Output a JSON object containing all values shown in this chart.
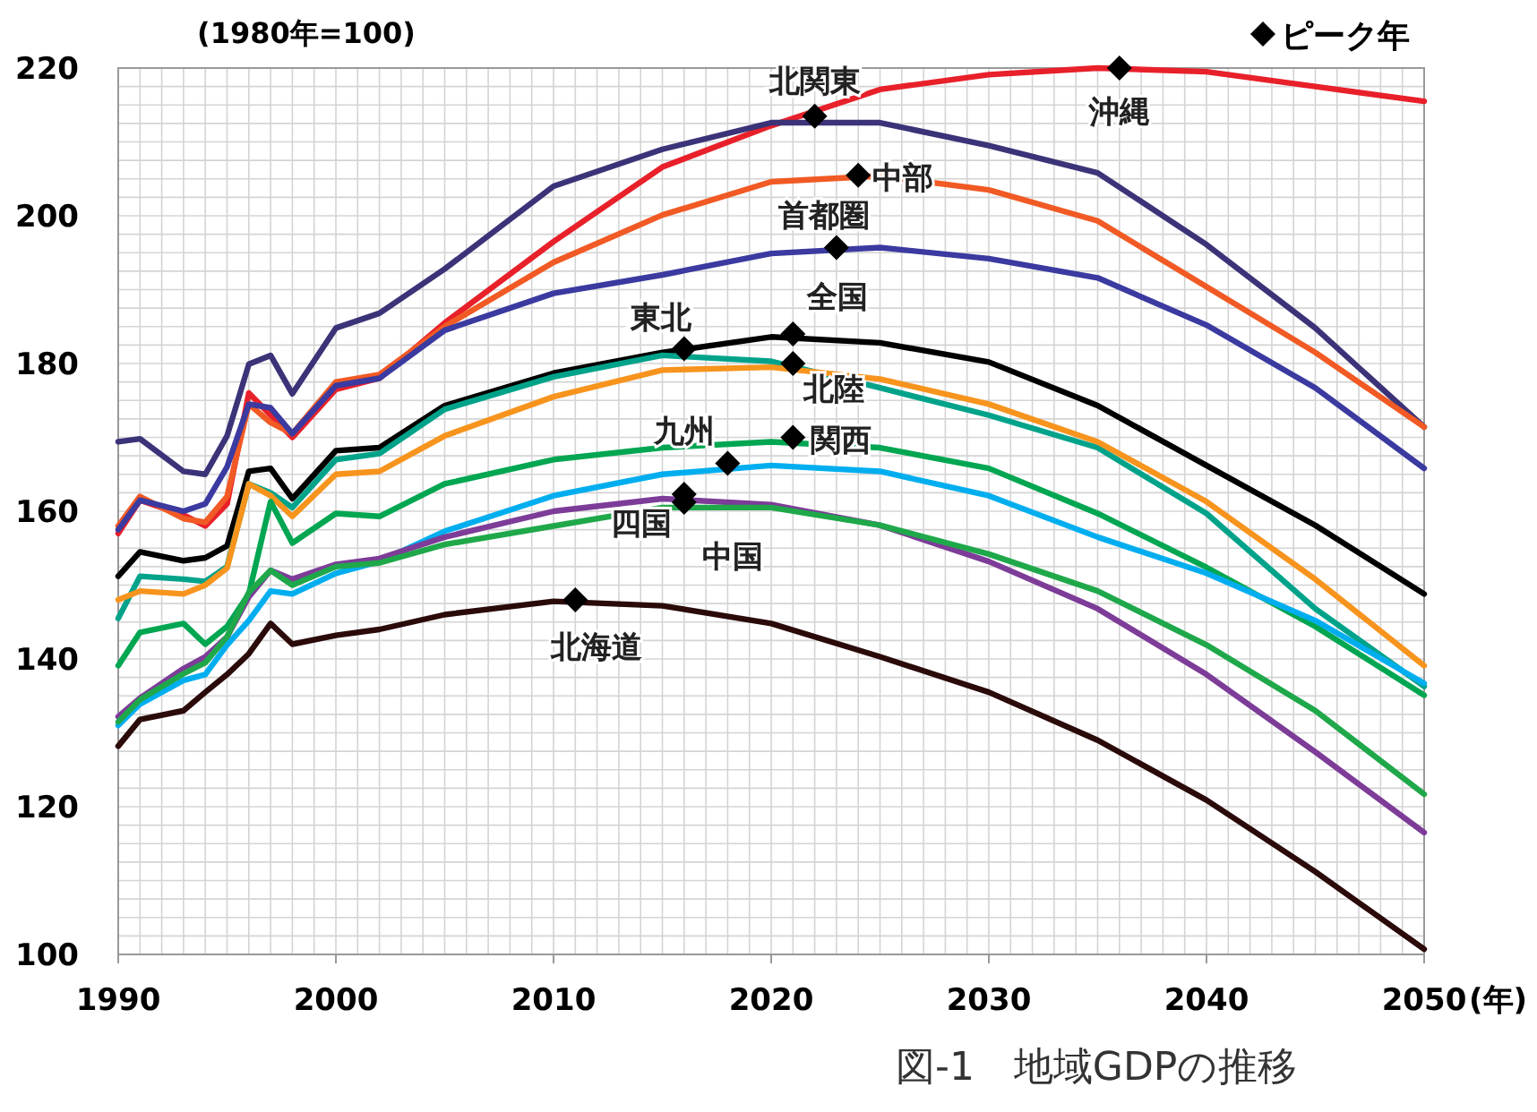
{
  "chart_data": {
    "type": "line",
    "ylabel": "(1980年=100)",
    "xlabel": "(年)",
    "annotations": [
      "図-1　地域GDPの推移",
      {
        "text": "沖縄",
        "x": 2036,
        "y": 220
      },
      {
        "text": "北関東",
        "x": 2022,
        "y": 213.5
      },
      {
        "text": "中部",
        "x": 2024,
        "y": 205.5
      },
      {
        "text": "首都圏",
        "x": 2023,
        "y": 195.7
      },
      {
        "text": "全国",
        "x": 2021,
        "y": 184
      },
      {
        "text": "東北",
        "x": 2016,
        "y": 182
      },
      {
        "text": "北陸",
        "x": 2021,
        "y": 180
      },
      {
        "text": "関西",
        "x": 2021,
        "y": 170
      },
      {
        "text": "九州",
        "x": 2018,
        "y": 166.5
      },
      {
        "text": "四国",
        "x": 2016,
        "y": 162.3
      },
      {
        "text": "中国",
        "x": 2016,
        "y": 161.2
      },
      {
        "text": "北海道",
        "x": 2011,
        "y": 148
      }
    ],
    "x": [
      1990,
      1991,
      1993,
      1994,
      1995,
      1996,
      1997,
      1998,
      2000,
      2002,
      2005,
      2010,
      2015,
      2020,
      2025,
      2030,
      2035,
      2040,
      2045,
      2050
    ],
    "xlim": [
      1990,
      2050
    ],
    "xticks": [
      1990,
      2000,
      2010,
      2020,
      2030,
      2040,
      2050
    ],
    "ylim": [
      100,
      220
    ],
    "yticks": [
      100,
      120,
      140,
      160,
      180,
      200,
      220
    ],
    "grid": true,
    "legend": "top right",
    "line_style": "solid",
    "marker": "none",
    "series": [
      {
        "color": "#e8202a",
        "values": [
          157,
          161.5,
          159.5,
          158,
          161,
          176,
          173,
          170,
          176.5,
          178,
          185.5,
          196.5,
          206.6,
          212.2,
          217.1,
          219.1,
          220,
          219.5,
          217.5,
          215.5
        ]
      },
      {
        "color": "#3b3378",
        "values": [
          169.4,
          169.8,
          165.4,
          165,
          170.2,
          179.9,
          181.1,
          175.9,
          184.8,
          186.8,
          192.8,
          204,
          209,
          212.6,
          212.6,
          209.5,
          205.8,
          196.1,
          184.8,
          171.4
        ]
      },
      {
        "color": "#f15a24",
        "values": [
          158,
          162,
          159,
          158.5,
          162,
          174.5,
          172,
          170.5,
          177.5,
          178.5,
          185,
          193.7,
          200.1,
          204.6,
          205.4,
          203.5,
          199.3,
          190.4,
          181.5,
          171.4
        ]
      },
      {
        "color": "#3a3aa0",
        "values": [
          157.5,
          161.5,
          160,
          161,
          166,
          174.5,
          174,
          170.5,
          177,
          178,
          184.5,
          189.5,
          192,
          194.9,
          195.7,
          194.2,
          191.6,
          185.2,
          176.7,
          165.8
        ]
      },
      {
        "color": "#000000",
        "values": [
          151.2,
          154.5,
          153.3,
          153.7,
          155.3,
          165.4,
          165.8,
          161.7,
          168.2,
          168.6,
          174.3,
          178.7,
          181.5,
          183.6,
          182.8,
          180.2,
          174.3,
          166.2,
          158.1,
          148.8
        ]
      },
      {
        "color": "#00a38a",
        "values": [
          145.5,
          151.2,
          150.8,
          150.5,
          152.5,
          163.7,
          162.5,
          160.5,
          167,
          167.8,
          173.8,
          178.2,
          181.1,
          180.3,
          176.7,
          173,
          168.6,
          159.7,
          146.8,
          136.3
        ]
      },
      {
        "color": "#f7941d",
        "values": [
          148,
          149.2,
          148.8,
          150,
          152.3,
          163.7,
          162.1,
          159.3,
          165,
          165.4,
          170.2,
          175.5,
          179.1,
          179.5,
          177.9,
          174.5,
          169.4,
          161.3,
          150.8,
          139.1
        ]
      },
      {
        "color": "#00a651",
        "values": [
          139.1,
          143.6,
          144.8,
          142,
          144.4,
          148.8,
          161.3,
          155.7,
          159.7,
          159.3,
          163.7,
          167,
          168.6,
          169.4,
          168.6,
          165.8,
          159.7,
          152.4,
          144.4,
          135.1
        ]
      },
      {
        "color": "#00aeef",
        "values": [
          131,
          133.9,
          137.1,
          137.9,
          141.9,
          145.2,
          149.2,
          148.8,
          151.6,
          153.2,
          157.3,
          162.1,
          165,
          166.2,
          165.4,
          162.1,
          156.5,
          151.6,
          145.2,
          136.7
        ]
      },
      {
        "color": "#7d3c98",
        "values": [
          132.2,
          134.7,
          138.7,
          140.3,
          143,
          148.4,
          152,
          150.8,
          152.8,
          153.6,
          156.5,
          160,
          161.7,
          160.9,
          158.1,
          153.2,
          146.8,
          137.9,
          127.4,
          116.5
        ]
      },
      {
        "color": "#1fa84a",
        "values": [
          131.5,
          134.5,
          138,
          139.5,
          143,
          149,
          152,
          150,
          152.5,
          153,
          155.5,
          158,
          160.5,
          160.5,
          158.1,
          154.2,
          149.2,
          141.9,
          133,
          121.7
        ]
      },
      {
        "color": "#2b0a0a",
        "values": [
          128.2,
          131.8,
          133,
          135.5,
          137.9,
          140.7,
          144.8,
          142,
          143.2,
          144,
          146,
          147.8,
          147.2,
          144.8,
          140.3,
          135.5,
          129,
          120.9,
          111.2,
          100.7
        ]
      },
      {
        "name": "ピーク年",
        "type": "scatter",
        "marker": "diamond",
        "color": "#000000",
        "x": [
          2036,
          2022,
          2024,
          2023,
          2021,
          2016,
          2021,
          2021,
          2018,
          2016,
          2016,
          2011
        ],
        "values": [
          220,
          213.5,
          205.5,
          195.7,
          184,
          182,
          180,
          170,
          166.5,
          162.3,
          161.2,
          148
        ]
      }
    ]
  }
}
